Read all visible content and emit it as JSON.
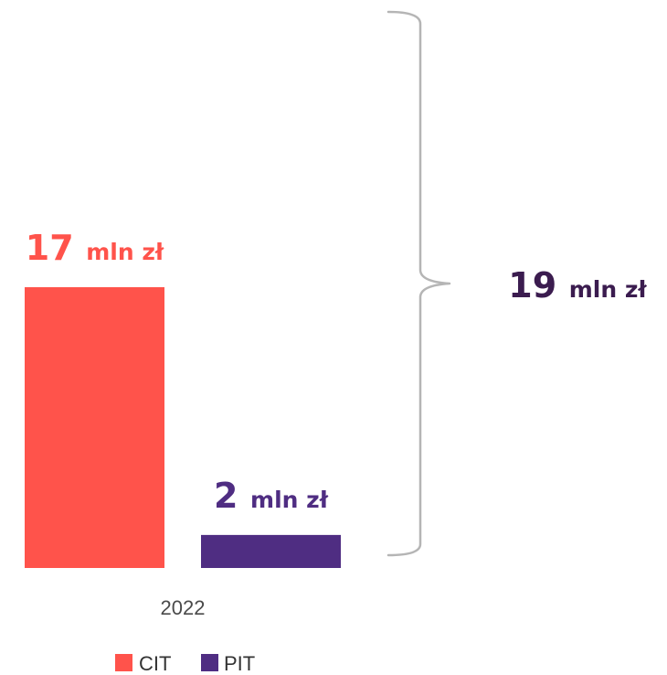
{
  "chart_data": {
    "type": "bar",
    "categories": [
      "2022"
    ],
    "series": [
      {
        "name": "CIT",
        "values": [
          17
        ],
        "color": "#ff534b",
        "label_value": "17",
        "label_unit": "mln zł"
      },
      {
        "name": "PIT",
        "values": [
          2
        ],
        "color": "#4f2d82",
        "label_value": "2",
        "label_unit": "mln zł"
      }
    ],
    "total": {
      "value_text": "19",
      "unit": "mln zł",
      "color": "#3b1c4f"
    },
    "ylim": [
      0,
      17
    ],
    "legend": "bottom-center",
    "grid": false
  }
}
